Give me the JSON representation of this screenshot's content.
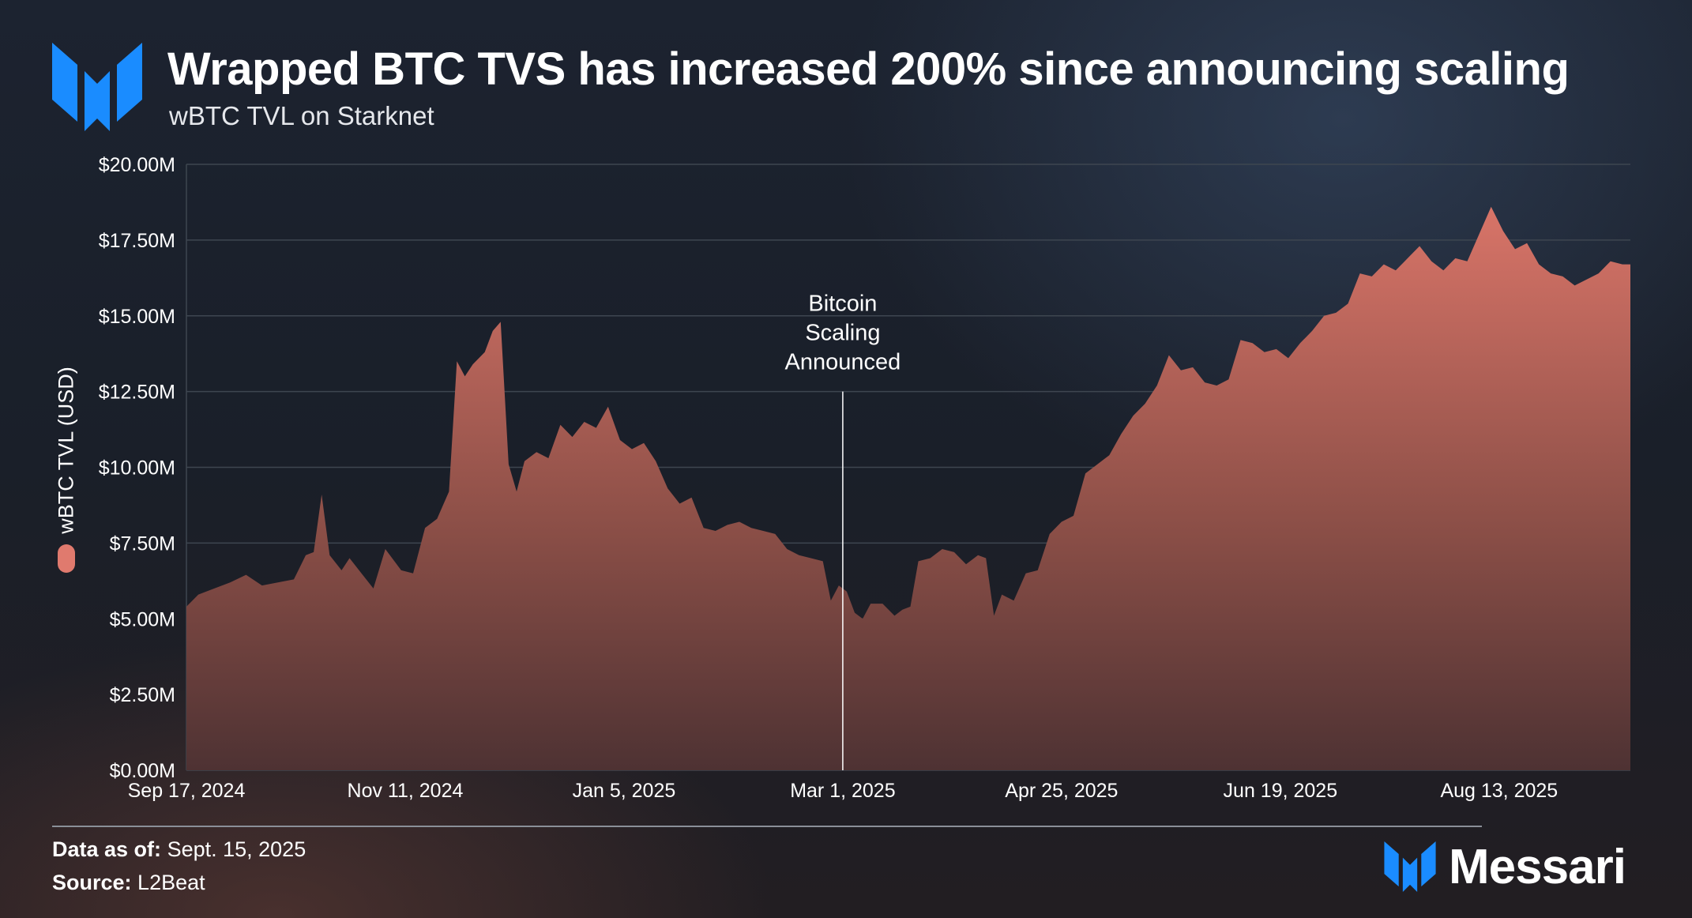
{
  "header": {
    "title": "Wrapped BTC TVS has increased 200% since announcing scaling",
    "subtitle": "wBTC TVL on Starknet"
  },
  "footer": {
    "data_as_of_label": "Data as of:",
    "data_as_of_value": "Sept. 15, 2025",
    "source_label": "Source:",
    "source_value": "L2Beat",
    "brand": "Messari"
  },
  "colors": {
    "accent": "#1a8cff",
    "series": "#e07a6e",
    "grid": "#3e4650",
    "text": "#ffffff"
  },
  "chart_data": {
    "type": "area",
    "title": "Wrapped BTC TVS has increased 200% since announcing scaling",
    "subtitle": "wBTC TVL on Starknet",
    "ylabel": "wBTC TVL (USD)",
    "xlabel": "",
    "ylim": [
      0,
      20000000
    ],
    "xlim": [
      "2024-09-17",
      "2025-09-15"
    ],
    "y_ticks": [
      {
        "value": 0,
        "label": "$0.00M"
      },
      {
        "value": 2500000,
        "label": "$2.50M"
      },
      {
        "value": 5000000,
        "label": "$5.00M"
      },
      {
        "value": 7500000,
        "label": "$7.50M"
      },
      {
        "value": 10000000,
        "label": "$10.00M"
      },
      {
        "value": 12500000,
        "label": "$12.50M"
      },
      {
        "value": 15000000,
        "label": "$15.00M"
      },
      {
        "value": 17500000,
        "label": "$17.50M"
      },
      {
        "value": 20000000,
        "label": "$20.00M"
      }
    ],
    "x_ticks": [
      {
        "date": "2024-09-17",
        "label": "Sep 17, 2024"
      },
      {
        "date": "2024-11-11",
        "label": "Nov 11, 2024"
      },
      {
        "date": "2025-01-05",
        "label": "Jan 5, 2025"
      },
      {
        "date": "2025-03-01",
        "label": "Mar 1, 2025"
      },
      {
        "date": "2025-04-25",
        "label": "Apr 25, 2025"
      },
      {
        "date": "2025-06-19",
        "label": "Jun 19, 2025"
      },
      {
        "date": "2025-08-13",
        "label": "Aug 13, 2025"
      }
    ],
    "grid": true,
    "legend": "left",
    "annotations": [
      {
        "date": "2025-03-01",
        "lines": [
          "Bitcoin",
          "Scaling",
          "Announced"
        ],
        "marker_top_value": 12500000
      }
    ],
    "series": [
      {
        "name": "wBTC TVL (USD)",
        "color": "#e07a6e",
        "points": [
          [
            "2024-09-17",
            5400000
          ],
          [
            "2024-09-20",
            5800000
          ],
          [
            "2024-09-24",
            6000000
          ],
          [
            "2024-09-28",
            6200000
          ],
          [
            "2024-10-02",
            6450000
          ],
          [
            "2024-10-06",
            6100000
          ],
          [
            "2024-10-10",
            6200000
          ],
          [
            "2024-10-14",
            6300000
          ],
          [
            "2024-10-17",
            7100000
          ],
          [
            "2024-10-19",
            7200000
          ],
          [
            "2024-10-21",
            9100000
          ],
          [
            "2024-10-23",
            7100000
          ],
          [
            "2024-10-26",
            6600000
          ],
          [
            "2024-10-28",
            7000000
          ],
          [
            "2024-10-31",
            6500000
          ],
          [
            "2024-11-03",
            6000000
          ],
          [
            "2024-11-06",
            7300000
          ],
          [
            "2024-11-10",
            6600000
          ],
          [
            "2024-11-13",
            6500000
          ],
          [
            "2024-11-16",
            8000000
          ],
          [
            "2024-11-19",
            8300000
          ],
          [
            "2024-11-22",
            9200000
          ],
          [
            "2024-11-24",
            13500000
          ],
          [
            "2024-11-26",
            13000000
          ],
          [
            "2024-11-28",
            13400000
          ],
          [
            "2024-12-01",
            13800000
          ],
          [
            "2024-12-03",
            14500000
          ],
          [
            "2024-12-05",
            14800000
          ],
          [
            "2024-12-07",
            10100000
          ],
          [
            "2024-12-09",
            9200000
          ],
          [
            "2024-12-11",
            10200000
          ],
          [
            "2024-12-14",
            10500000
          ],
          [
            "2024-12-17",
            10300000
          ],
          [
            "2024-12-20",
            11400000
          ],
          [
            "2024-12-23",
            11000000
          ],
          [
            "2024-12-26",
            11500000
          ],
          [
            "2024-12-29",
            11300000
          ],
          [
            "2025-01-01",
            12000000
          ],
          [
            "2025-01-04",
            10900000
          ],
          [
            "2025-01-07",
            10600000
          ],
          [
            "2025-01-10",
            10800000
          ],
          [
            "2025-01-13",
            10200000
          ],
          [
            "2025-01-16",
            9300000
          ],
          [
            "2025-01-19",
            8800000
          ],
          [
            "2025-01-22",
            9000000
          ],
          [
            "2025-01-25",
            8000000
          ],
          [
            "2025-01-28",
            7900000
          ],
          [
            "2025-01-31",
            8100000
          ],
          [
            "2025-02-03",
            8200000
          ],
          [
            "2025-02-06",
            8000000
          ],
          [
            "2025-02-09",
            7900000
          ],
          [
            "2025-02-12",
            7800000
          ],
          [
            "2025-02-15",
            7300000
          ],
          [
            "2025-02-18",
            7100000
          ],
          [
            "2025-02-21",
            7000000
          ],
          [
            "2025-02-24",
            6900000
          ],
          [
            "2025-02-26",
            5600000
          ],
          [
            "2025-02-28",
            6100000
          ],
          [
            "2025-03-02",
            5900000
          ],
          [
            "2025-03-04",
            5200000
          ],
          [
            "2025-03-06",
            5000000
          ],
          [
            "2025-03-08",
            5500000
          ],
          [
            "2025-03-11",
            5500000
          ],
          [
            "2025-03-14",
            5100000
          ],
          [
            "2025-03-16",
            5300000
          ],
          [
            "2025-03-18",
            5400000
          ],
          [
            "2025-03-20",
            6900000
          ],
          [
            "2025-03-23",
            7000000
          ],
          [
            "2025-03-26",
            7300000
          ],
          [
            "2025-03-29",
            7200000
          ],
          [
            "2025-04-01",
            6800000
          ],
          [
            "2025-04-04",
            7100000
          ],
          [
            "2025-04-06",
            7000000
          ],
          [
            "2025-04-08",
            5100000
          ],
          [
            "2025-04-10",
            5800000
          ],
          [
            "2025-04-13",
            5600000
          ],
          [
            "2025-04-16",
            6500000
          ],
          [
            "2025-04-19",
            6600000
          ],
          [
            "2025-04-22",
            7800000
          ],
          [
            "2025-04-25",
            8200000
          ],
          [
            "2025-04-28",
            8400000
          ],
          [
            "2025-05-01",
            9800000
          ],
          [
            "2025-05-04",
            10100000
          ],
          [
            "2025-05-07",
            10400000
          ],
          [
            "2025-05-10",
            11100000
          ],
          [
            "2025-05-13",
            11700000
          ],
          [
            "2025-05-16",
            12100000
          ],
          [
            "2025-05-19",
            12700000
          ],
          [
            "2025-05-22",
            13700000
          ],
          [
            "2025-05-25",
            13200000
          ],
          [
            "2025-05-28",
            13300000
          ],
          [
            "2025-05-31",
            12800000
          ],
          [
            "2025-06-03",
            12700000
          ],
          [
            "2025-06-06",
            12900000
          ],
          [
            "2025-06-09",
            14200000
          ],
          [
            "2025-06-12",
            14100000
          ],
          [
            "2025-06-15",
            13800000
          ],
          [
            "2025-06-18",
            13900000
          ],
          [
            "2025-06-21",
            13600000
          ],
          [
            "2025-06-24",
            14100000
          ],
          [
            "2025-06-27",
            14500000
          ],
          [
            "2025-06-30",
            15000000
          ],
          [
            "2025-07-03",
            15100000
          ],
          [
            "2025-07-06",
            15400000
          ],
          [
            "2025-07-09",
            16400000
          ],
          [
            "2025-07-12",
            16300000
          ],
          [
            "2025-07-15",
            16700000
          ],
          [
            "2025-07-18",
            16500000
          ],
          [
            "2025-07-21",
            16900000
          ],
          [
            "2025-07-24",
            17300000
          ],
          [
            "2025-07-27",
            16800000
          ],
          [
            "2025-07-30",
            16500000
          ],
          [
            "2025-08-02",
            16900000
          ],
          [
            "2025-08-05",
            16800000
          ],
          [
            "2025-08-08",
            17700000
          ],
          [
            "2025-08-11",
            18600000
          ],
          [
            "2025-08-14",
            17800000
          ],
          [
            "2025-08-17",
            17200000
          ],
          [
            "2025-08-20",
            17400000
          ],
          [
            "2025-08-23",
            16700000
          ],
          [
            "2025-08-26",
            16400000
          ],
          [
            "2025-08-29",
            16300000
          ],
          [
            "2025-09-01",
            16000000
          ],
          [
            "2025-09-04",
            16200000
          ],
          [
            "2025-09-07",
            16400000
          ],
          [
            "2025-09-10",
            16800000
          ],
          [
            "2025-09-13",
            16700000
          ],
          [
            "2025-09-15",
            16700000
          ]
        ]
      }
    ]
  }
}
